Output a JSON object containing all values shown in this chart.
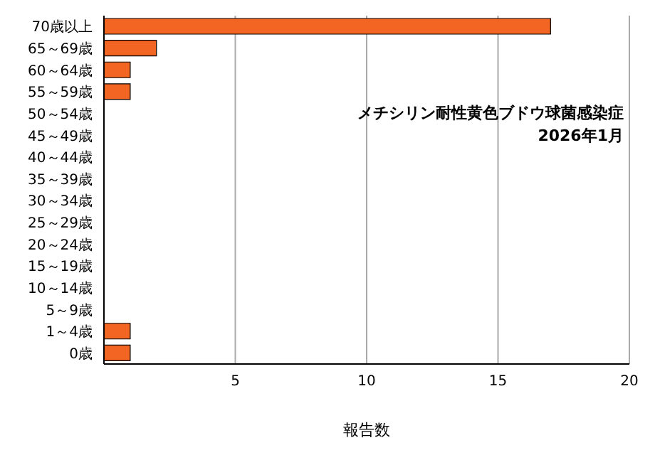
{
  "chart_data": {
    "type": "bar",
    "orientation": "horizontal",
    "xlabel": "報告数",
    "categories": [
      "70歳以上",
      "65～69歳",
      "60～64歳",
      "55～59歳",
      "50～54歳",
      "45～49歳",
      "40～44歳",
      "35～39歳",
      "30～34歳",
      "25～29歳",
      "20～24歳",
      "15～19歳",
      "10～14歳",
      "5～9歳",
      "1～4歳",
      "0歳"
    ],
    "values": [
      17,
      2,
      1,
      1,
      0,
      0,
      0,
      0,
      0,
      0,
      0,
      0,
      0,
      0,
      1,
      1
    ],
    "color": "#f26522",
    "xlim": [
      0,
      20
    ],
    "xticks": [
      {
        "value": 0,
        "label": null
      },
      5,
      10,
      15,
      20
    ],
    "grid": "x",
    "annotations": [
      "メチシリン耐性黄色ブドウ球菌感染症",
      "2026年1月"
    ]
  }
}
